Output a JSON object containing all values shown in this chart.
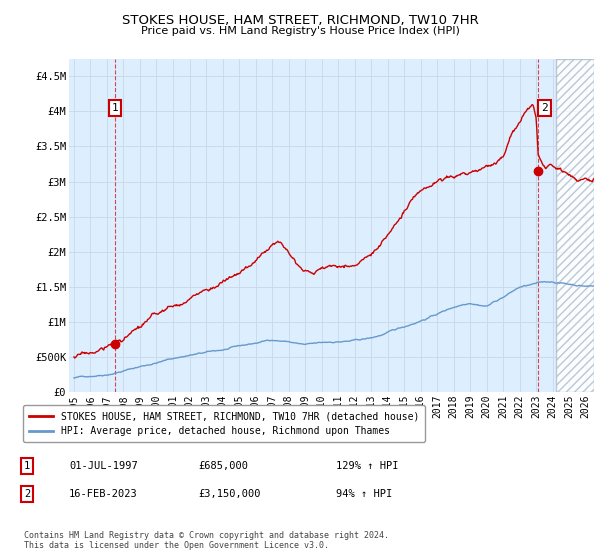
{
  "title": "STOKES HOUSE, HAM STREET, RICHMOND, TW10 7HR",
  "subtitle": "Price paid vs. HM Land Registry's House Price Index (HPI)",
  "legend_label_red": "STOKES HOUSE, HAM STREET, RICHMOND, TW10 7HR (detached house)",
  "legend_label_blue": "HPI: Average price, detached house, Richmond upon Thames",
  "annotation1_date": "01-JUL-1997",
  "annotation1_price": "£685,000",
  "annotation1_hpi": "129% ↑ HPI",
  "annotation2_date": "16-FEB-2023",
  "annotation2_price": "£3,150,000",
  "annotation2_hpi": "94% ↑ HPI",
  "footer": "Contains HM Land Registry data © Crown copyright and database right 2024.\nThis data is licensed under the Open Government Licence v3.0.",
  "red_color": "#cc0000",
  "blue_color": "#6699cc",
  "background_color": "#ffffff",
  "grid_color": "#c8d8e8",
  "hatch_color": "#dde8f0",
  "ylim": [
    0,
    4750000
  ],
  "yticks": [
    0,
    500000,
    1000000,
    1500000,
    2000000,
    2500000,
    3000000,
    3500000,
    4000000,
    4500000
  ],
  "ytick_labels": [
    "£0",
    "£500K",
    "£1M",
    "£1.5M",
    "£2M",
    "£2.5M",
    "£3M",
    "£3.5M",
    "£4M",
    "£4.5M"
  ],
  "xlim_start": 1994.7,
  "xlim_end": 2026.5,
  "xticks": [
    1995,
    1996,
    1997,
    1998,
    1999,
    2000,
    2001,
    2002,
    2003,
    2004,
    2005,
    2006,
    2007,
    2008,
    2009,
    2010,
    2011,
    2012,
    2013,
    2014,
    2015,
    2016,
    2017,
    2018,
    2019,
    2020,
    2021,
    2022,
    2023,
    2024,
    2025,
    2026
  ],
  "point1_x": 1997.5,
  "point1_y": 685000,
  "point2_x": 2023.12,
  "point2_y": 3150000,
  "future_start": 2024.17,
  "dashed_line_x": 1997.5,
  "dashed_line2_x": 2023.12
}
